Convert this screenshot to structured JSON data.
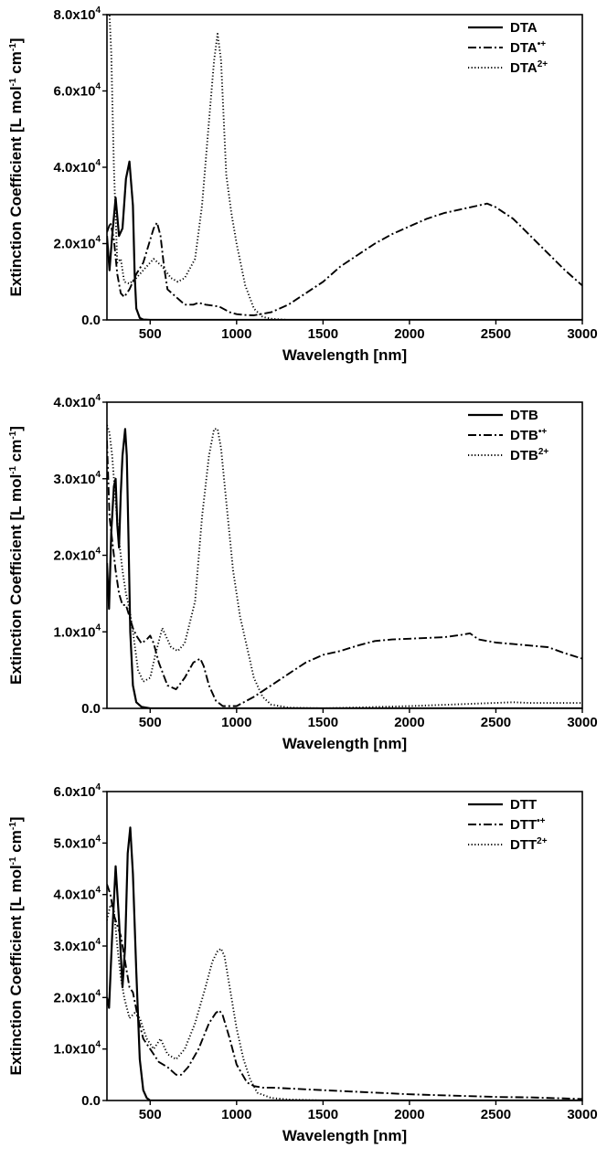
{
  "colors": {
    "ink": "#000000",
    "background": "#ffffff"
  },
  "chart_data": [
    {
      "type": "line",
      "xlabel": "Wavelength [nm]",
      "ylabel": "Extinction Coefficient [L mol-1 cm-1]",
      "ylabel_parts": [
        "Extinction Coefficient [L mol",
        "-1",
        " cm",
        "-1",
        "]"
      ],
      "xlim": [
        250,
        3000
      ],
      "ylim": [
        0,
        80000
      ],
      "xticks": [
        500,
        1000,
        1500,
        2000,
        2500,
        3000
      ],
      "xtick_labels": [
        "500",
        "1000",
        "1500",
        "2000",
        "2500",
        "3000"
      ],
      "yticks": [
        0,
        20000,
        40000,
        60000,
        80000
      ],
      "ytick_labels": [
        {
          "mantissa": "0.0",
          "exp": ""
        },
        {
          "mantissa": "2.0x10",
          "exp": "4"
        },
        {
          "mantissa": "4.0x10",
          "exp": "4"
        },
        {
          "mantissa": "6.0x10",
          "exp": "4"
        },
        {
          "mantissa": "8.0x10",
          "exp": "4"
        }
      ],
      "legend_position": "top-right",
      "series": [
        {
          "name": "DTA",
          "name_base": "DTA",
          "name_sup": "",
          "style": "solid",
          "x": [
            250,
            265,
            280,
            300,
            320,
            340,
            360,
            380,
            400,
            410,
            420,
            440,
            460,
            500,
            1000,
            2000,
            3000
          ],
          "y": [
            22000,
            13000,
            22000,
            32000,
            22000,
            24000,
            37000,
            41500,
            30000,
            12000,
            3000,
            500,
            100,
            0,
            0,
            0,
            0
          ]
        },
        {
          "name": "DTA•+",
          "name_base": "DTA",
          "name_sup": "•+",
          "style": "dashdot",
          "x": [
            250,
            270,
            290,
            310,
            330,
            350,
            380,
            420,
            460,
            500,
            520,
            540,
            560,
            580,
            600,
            650,
            700,
            750,
            780,
            820,
            900,
            960,
            1000,
            1050,
            1100,
            1200,
            1300,
            1400,
            1500,
            1600,
            1700,
            1800,
            1900,
            2000,
            2100,
            2200,
            2300,
            2400,
            2450,
            2500,
            2600,
            2700,
            2800,
            2900,
            3000
          ],
          "y": [
            23000,
            25500,
            21000,
            12000,
            7000,
            6000,
            8000,
            12000,
            15000,
            21000,
            24000,
            25500,
            22000,
            14000,
            8000,
            6000,
            4000,
            4000,
            4500,
            4000,
            3500,
            2000,
            1500,
            1300,
            1200,
            2000,
            4000,
            7000,
            10000,
            14000,
            17000,
            20000,
            22500,
            24500,
            26500,
            28000,
            29000,
            30000,
            30500,
            29500,
            26500,
            22000,
            17500,
            13000,
            9000
          ]
        },
        {
          "name": "DTA2+",
          "name_base": "DTA",
          "name_sup": "2+",
          "style": "dotted",
          "x": [
            250,
            265,
            275,
            290,
            310,
            330,
            350,
            380,
            420,
            470,
            520,
            570,
            620,
            660,
            700,
            760,
            800,
            840,
            870,
            890,
            910,
            940,
            970,
            1000,
            1050,
            1100,
            1150,
            1200,
            1300,
            1500,
            3000
          ],
          "y": [
            80000,
            80000,
            70000,
            40000,
            15000,
            16000,
            10000,
            9500,
            11000,
            13500,
            16000,
            14000,
            11000,
            10000,
            11000,
            16000,
            30000,
            52000,
            68000,
            75000,
            68000,
            38000,
            28000,
            20000,
            9000,
            3000,
            800,
            300,
            0,
            0,
            0
          ]
        }
      ]
    },
    {
      "type": "line",
      "xlabel": "Wavelength [nm]",
      "ylabel": "Extinction Coefficient [L mol-1 cm-1]",
      "ylabel_parts": [
        "Extinction Coefficient [L mol",
        "-1",
        " cm",
        "-1",
        "]"
      ],
      "xlim": [
        250,
        3000
      ],
      "ylim": [
        0,
        40000
      ],
      "xticks": [
        500,
        1000,
        1500,
        2000,
        2500,
        3000
      ],
      "xtick_labels": [
        "500",
        "1000",
        "1500",
        "2000",
        "2500",
        "3000"
      ],
      "yticks": [
        0,
        10000,
        20000,
        30000,
        40000
      ],
      "ytick_labels": [
        {
          "mantissa": "0.0",
          "exp": ""
        },
        {
          "mantissa": "1.0x10",
          "exp": "4"
        },
        {
          "mantissa": "2.0x10",
          "exp": "4"
        },
        {
          "mantissa": "3.0x10",
          "exp": "4"
        },
        {
          "mantissa": "4.0x10",
          "exp": "4"
        }
      ],
      "legend_position": "top-right",
      "series": [
        {
          "name": "DTB",
          "name_base": "DTB",
          "name_sup": "",
          "style": "solid",
          "x": [
            250,
            262,
            275,
            290,
            300,
            310,
            320,
            330,
            340,
            355,
            365,
            375,
            385,
            400,
            420,
            450,
            500,
            1000,
            2000,
            3000
          ],
          "y": [
            19000,
            13000,
            23000,
            29000,
            30000,
            24000,
            21000,
            28000,
            33000,
            36500,
            33000,
            22000,
            10000,
            3000,
            800,
            200,
            0,
            0,
            0,
            0
          ]
        },
        {
          "name": "DTB•+",
          "name_base": "DTB",
          "name_sup": "•+",
          "style": "dashdot",
          "x": [
            250,
            265,
            280,
            300,
            320,
            340,
            360,
            380,
            400,
            420,
            450,
            480,
            500,
            520,
            550,
            600,
            650,
            700,
            750,
            790,
            810,
            840,
            880,
            920,
            1000,
            1100,
            1200,
            1300,
            1400,
            1500,
            1600,
            1700,
            1800,
            1900,
            2000,
            2200,
            2300,
            2350,
            2400,
            2500,
            2600,
            2700,
            2800,
            2900,
            3000
          ],
          "y": [
            35000,
            25000,
            22000,
            18000,
            15000,
            13500,
            13500,
            12000,
            10500,
            9500,
            8500,
            9000,
            9500,
            8500,
            6000,
            3000,
            2500,
            4000,
            6000,
            6500,
            5500,
            3000,
            1000,
            300,
            300,
            1500,
            3000,
            4500,
            6000,
            7000,
            7500,
            8200,
            8800,
            9000,
            9100,
            9300,
            9600,
            9800,
            9000,
            8600,
            8400,
            8200,
            8000,
            7200,
            6500
          ]
        },
        {
          "name": "DTB2+",
          "name_base": "DTB",
          "name_sup": "2+",
          "style": "dotted",
          "x": [
            250,
            265,
            280,
            300,
            320,
            340,
            360,
            380,
            400,
            430,
            460,
            500,
            530,
            570,
            620,
            660,
            700,
            760,
            800,
            840,
            870,
            890,
            910,
            940,
            980,
            1020,
            1060,
            1100,
            1150,
            1200,
            1300,
            1500,
            2000,
            2600,
            2700,
            3000
          ],
          "y": [
            37000,
            36000,
            33000,
            27000,
            22000,
            18000,
            15000,
            13000,
            10000,
            5000,
            3500,
            4000,
            7000,
            10500,
            8000,
            7500,
            8500,
            14000,
            25000,
            33000,
            36500,
            36500,
            34000,
            27000,
            18000,
            12000,
            8000,
            4000,
            1500,
            500,
            100,
            0,
            300,
            800,
            700,
            700
          ]
        }
      ]
    },
    {
      "type": "line",
      "xlabel": "Wavelength [nm]",
      "ylabel": "Extinction Coefficient [L mol-1 cm-1]",
      "ylabel_parts": [
        "Extinction Coefficient [L mol",
        "-1",
        " cm",
        "-1",
        "]"
      ],
      "xlim": [
        250,
        3000
      ],
      "ylim": [
        0,
        60000
      ],
      "xticks": [
        500,
        1000,
        1500,
        2000,
        2500,
        3000
      ],
      "xtick_labels": [
        "500",
        "1000",
        "1500",
        "2000",
        "2500",
        "3000"
      ],
      "yticks": [
        0,
        10000,
        20000,
        30000,
        40000,
        50000,
        60000
      ],
      "ytick_labels": [
        {
          "mantissa": "0.0",
          "exp": ""
        },
        {
          "mantissa": "1.0x10",
          "exp": "4"
        },
        {
          "mantissa": "2.0x10",
          "exp": "4"
        },
        {
          "mantissa": "3.0x10",
          "exp": "4"
        },
        {
          "mantissa": "4.0x10",
          "exp": "4"
        },
        {
          "mantissa": "5.0x10",
          "exp": "4"
        },
        {
          "mantissa": "6.0x10",
          "exp": "4"
        }
      ],
      "legend_position": "top-right",
      "series": [
        {
          "name": "DTT",
          "name_base": "DTT",
          "name_sup": "",
          "style": "solid",
          "x": [
            250,
            262,
            280,
            300,
            320,
            340,
            355,
            370,
            385,
            400,
            420,
            440,
            460,
            480,
            500,
            1000,
            2000,
            3000
          ],
          "y": [
            20000,
            18000,
            32000,
            45500,
            35000,
            22000,
            30000,
            48000,
            53000,
            44000,
            25000,
            8000,
            2000,
            500,
            0,
            0,
            0,
            0
          ]
        },
        {
          "name": "DTT•+",
          "name_base": "DTT",
          "name_sup": "•+",
          "style": "dashdot",
          "x": [
            250,
            270,
            290,
            310,
            330,
            350,
            380,
            400,
            430,
            460,
            500,
            550,
            600,
            650,
            680,
            720,
            780,
            840,
            880,
            900,
            920,
            960,
            1000,
            1060,
            1100,
            1150,
            1200,
            1500,
            2000,
            2500,
            2700,
            3000
          ],
          "y": [
            42000,
            40000,
            36000,
            34000,
            32000,
            28000,
            22000,
            21000,
            16000,
            12000,
            10000,
            7500,
            6500,
            5000,
            5000,
            6500,
            10000,
            15000,
            17000,
            17500,
            16500,
            12000,
            7000,
            3500,
            2800,
            2500,
            2500,
            2000,
            1200,
            700,
            600,
            300
          ]
        },
        {
          "name": "DTT2+",
          "name_base": "DTT",
          "name_sup": "2+",
          "style": "dotted",
          "x": [
            250,
            270,
            290,
            310,
            330,
            350,
            380,
            410,
            440,
            480,
            520,
            560,
            600,
            650,
            700,
            760,
            820,
            860,
            890,
            910,
            930,
            960,
            1000,
            1040,
            1080,
            1120,
            1200,
            1300,
            1500,
            2000,
            3000
          ],
          "y": [
            35000,
            38000,
            37000,
            30000,
            24000,
            20000,
            16000,
            17000,
            16000,
            12000,
            10000,
            12000,
            9000,
            8000,
            10000,
            15000,
            22000,
            27000,
            29000,
            29500,
            28000,
            22000,
            14000,
            8000,
            4000,
            1500,
            500,
            200,
            0,
            0,
            0
          ]
        }
      ]
    }
  ]
}
